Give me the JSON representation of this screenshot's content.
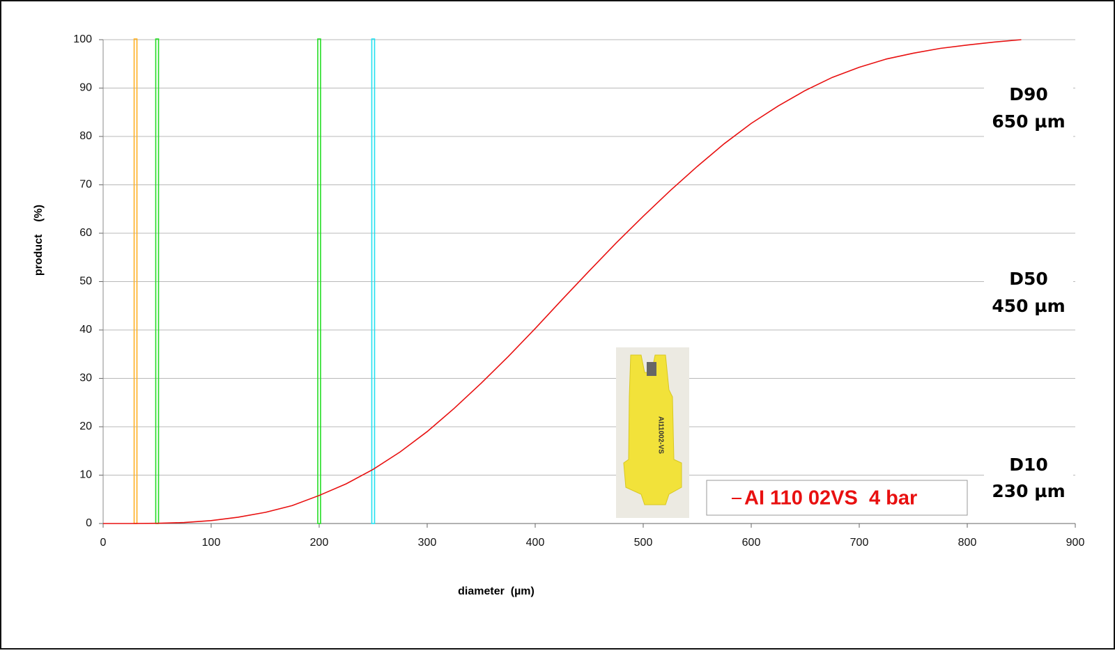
{
  "chart_data": {
    "type": "line",
    "xlabel": "diameter  (µm)",
    "ylabel": "product    (%)",
    "x": [
      0,
      25,
      50,
      75,
      100,
      125,
      150,
      175,
      200,
      225,
      250,
      275,
      300,
      325,
      350,
      375,
      400,
      425,
      450,
      475,
      500,
      525,
      550,
      575,
      600,
      625,
      650,
      675,
      700,
      725,
      750,
      775,
      800,
      825,
      850
    ],
    "series": [
      {
        "name": "AI 110 02VS  4 bar",
        "color": "#e81010",
        "values": [
          0,
          0,
          0.05,
          0.2,
          0.6,
          1.3,
          2.3,
          3.7,
          5.8,
          8.2,
          11.2,
          14.8,
          19,
          23.8,
          29,
          34.5,
          40.3,
          46.3,
          52.2,
          58,
          63.5,
          68.8,
          73.8,
          78.5,
          82.7,
          86.3,
          89.5,
          92.2,
          94.3,
          96,
          97.2,
          98.2,
          98.9,
          99.5,
          100
        ]
      }
    ],
    "markers": [
      {
        "x": 30,
        "color": "#ffb020"
      },
      {
        "x": 50,
        "color": "#22dd22"
      },
      {
        "x": 200,
        "color": "#22dd22"
      },
      {
        "x": 250,
        "color": "#22e0f0"
      }
    ],
    "annotations": [
      {
        "title": "D90",
        "text": "650 µm"
      },
      {
        "title": "D50",
        "text": "450 µm"
      },
      {
        "title": "D10",
        "text": "230 µm"
      }
    ],
    "nozzle_label": "AI11002-VS",
    "xlim": [
      0,
      900
    ],
    "xticks": [
      0,
      100,
      200,
      300,
      400,
      500,
      600,
      700,
      800,
      900
    ],
    "ylim": [
      0,
      100
    ],
    "yticks": [
      0,
      10,
      20,
      30,
      40,
      50,
      60,
      70,
      80,
      90,
      100
    ],
    "grid": true
  }
}
